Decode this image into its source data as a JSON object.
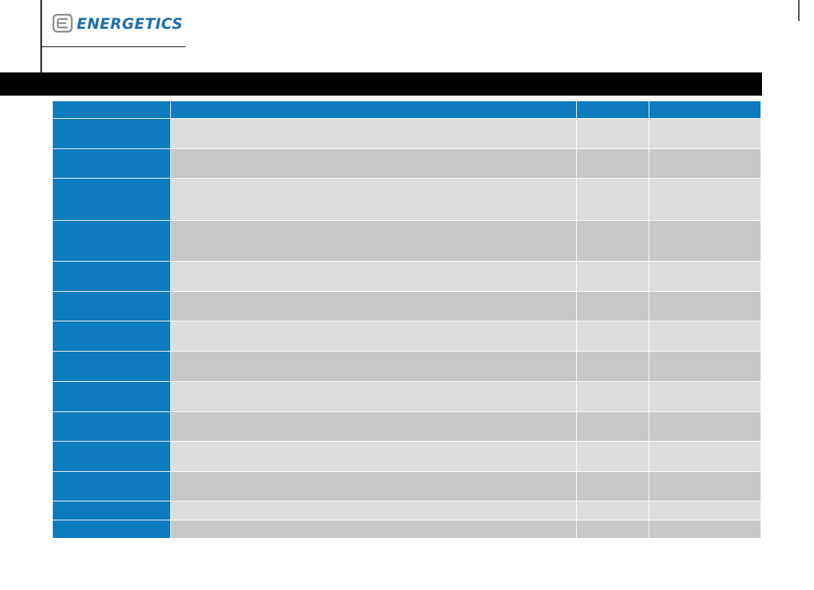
{
  "header": {
    "brand": "ENERGETICS"
  }
}
